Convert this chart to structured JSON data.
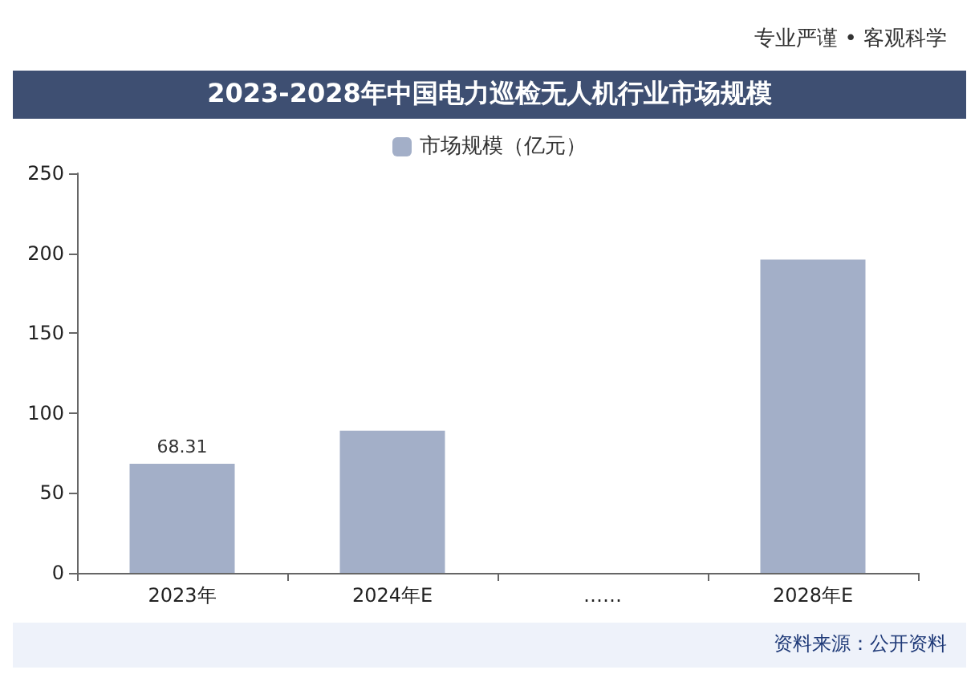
{
  "chart_data": {
    "type": "bar",
    "title": "2023-2028年中国电力巡检无人机行业市场规模",
    "categories": [
      "2023年",
      "2024年E",
      "……",
      "2028年E"
    ],
    "series": [
      {
        "name": "市场规模（亿元）",
        "color": "#a3afc8",
        "values": [
          68.31,
          89,
          null,
          196
        ],
        "value_labels": [
          "68.31",
          null,
          null,
          null
        ]
      }
    ],
    "ylim": [
      0,
      250
    ],
    "yticks": [
      0,
      50,
      100,
      150,
      200,
      250
    ],
    "grid": false,
    "legend": "top",
    "annotations": [
      "专业严谨 • 客观科学",
      "资料来源：公开资料"
    ]
  }
}
